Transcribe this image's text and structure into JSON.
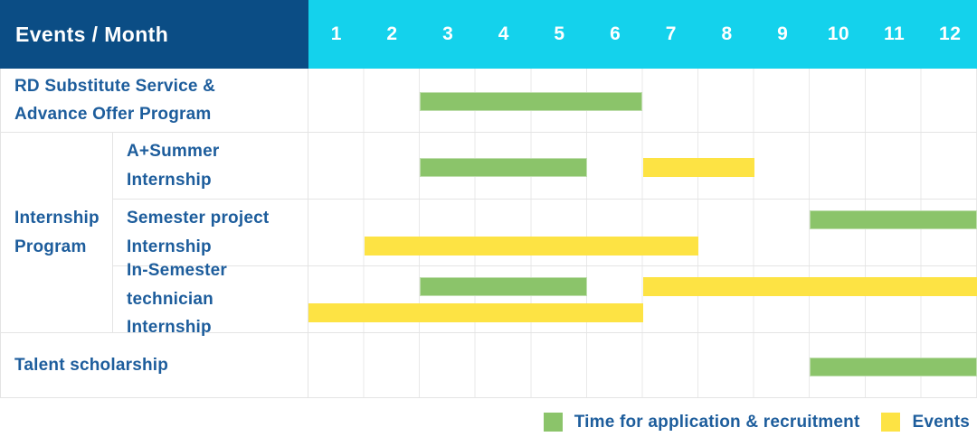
{
  "table": {
    "corner_label": "Events / Month"
  },
  "chart_data": {
    "type": "table",
    "subtype": "gantt",
    "title": "",
    "months": [
      "1",
      "2",
      "3",
      "4",
      "5",
      "6",
      "7",
      "8",
      "9",
      "10",
      "11",
      "12"
    ],
    "month_range": [
      1,
      12
    ],
    "colors": {
      "header_bg": "#0b4d85",
      "months_bg": "#14d2ec",
      "green": "#8bc46a",
      "yellow": "#fde344",
      "label_text": "#1d5d9c",
      "grid_line": "#e9e9e9"
    },
    "legend": [
      {
        "label": "Time for application & recruitment",
        "color": "#8bc46a",
        "key": "green"
      },
      {
        "label": "Events",
        "color": "#fde344",
        "key": "yellow"
      }
    ],
    "legend_position": "bottom-right",
    "rows": [
      {
        "group": "",
        "label": "RD Substitute Service &\nAdvance Offer Program",
        "bars": [
          {
            "color": "green",
            "start": 3,
            "end": 6,
            "lane": "center"
          }
        ]
      },
      {
        "group": "Internship\nProgram",
        "label": "A+Summer\nInternship",
        "bars": [
          {
            "color": "green",
            "start": 3,
            "end": 5,
            "lane": "center"
          },
          {
            "color": "yellow",
            "start": 7,
            "end": 8,
            "lane": "center"
          }
        ]
      },
      {
        "group": "Internship\nProgram",
        "label": "Semester project\nInternship",
        "bars": [
          {
            "color": "green",
            "start": 10,
            "end": 12,
            "lane": "top"
          },
          {
            "color": "yellow",
            "start": 2,
            "end": 7,
            "lane": "bottom"
          }
        ]
      },
      {
        "group": "Internship\nProgram",
        "label": "In-Semester\ntechnician Internship",
        "bars": [
          {
            "color": "green",
            "start": 3,
            "end": 5,
            "lane": "top"
          },
          {
            "color": "yellow",
            "start": 7,
            "end": 12,
            "lane": "top"
          },
          {
            "color": "yellow",
            "start": 1,
            "end": 6,
            "lane": "bottom"
          }
        ]
      },
      {
        "group": "",
        "label": "Talent scholarship",
        "bars": [
          {
            "color": "green",
            "start": 10,
            "end": 12,
            "lane": "center"
          }
        ]
      }
    ]
  }
}
